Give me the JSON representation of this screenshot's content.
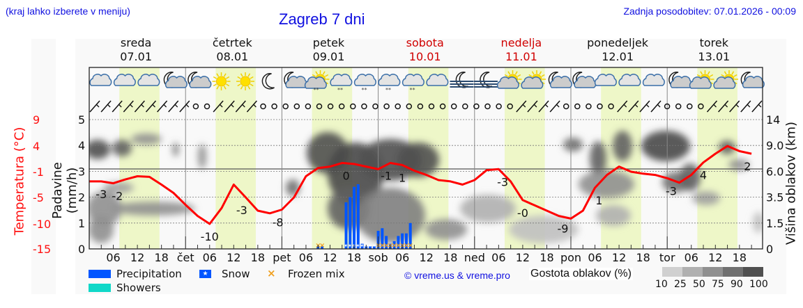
{
  "header": {
    "menu_hint": "(kraj lahko izberete v meniju)",
    "title": "Zagreb 7 dni",
    "last_update": "Zadnja posodobitev: 07.01.2026 - 00:09"
  },
  "days": [
    {
      "name": "sreda",
      "date": "07.01",
      "weekend": false
    },
    {
      "name": "četrtek",
      "date": "08.01",
      "weekend": false
    },
    {
      "name": "petek",
      "date": "09.01",
      "weekend": false
    },
    {
      "name": "sobota",
      "date": "10.01",
      "weekend": true
    },
    {
      "name": "nedelja",
      "date": "11.01",
      "weekend": true
    },
    {
      "name": "ponedeljek",
      "date": "12.01",
      "weekend": false
    },
    {
      "name": "torek",
      "date": "13.01",
      "weekend": false
    }
  ],
  "x_axis": {
    "labels": [
      "06",
      "12",
      "18",
      "čet",
      "06",
      "12",
      "18",
      "pet",
      "06",
      "12",
      "18",
      "sob",
      "06",
      "12",
      "18",
      "ned",
      "06",
      "12",
      "18",
      "pon",
      "06",
      "12",
      "18",
      "tor",
      "06",
      "12",
      "18"
    ]
  },
  "axes": {
    "temp_label": "Temperatura (°C)",
    "temp_ticks": [
      "9",
      "4",
      "-1",
      "-5",
      "-10",
      "-15"
    ],
    "precip_label": "Padavine (mm/h)",
    "precip_ticks": [
      "5",
      "4",
      "3",
      "2",
      "1",
      "0"
    ],
    "cloud_label": "Višina oblakov (km)",
    "cloud_ticks": [
      "14",
      "9.0",
      "6.0",
      "3.5",
      "1.5",
      "0"
    ]
  },
  "legend": {
    "precipitation": "Precipitation",
    "showers": "Showers",
    "snow": "Snow",
    "frozen_mix": "Frozen mix",
    "copyright": "© vreme.us & vreme.pro",
    "cloud_density_label": "Gostota oblakov (%)",
    "cloud_density_scale": [
      "10",
      "25",
      "50",
      "75",
      "90",
      "100"
    ],
    "colors": {
      "precipitation": "#0055ff",
      "showers": "#10d8c8",
      "snow": "#0055ff",
      "frozen_mix": "#f0a020",
      "temperature": "#ff0000",
      "daylight": "#eef7c8",
      "scale": [
        "#d0d0d0",
        "#b0b0b0",
        "#909090",
        "#707070",
        "#505050"
      ]
    }
  },
  "weather_icons": [
    "cloudy",
    "cloudy",
    "cloudy",
    "night-partly-cloudy",
    "night-partly-cloudy",
    "sunny",
    "sunny",
    "clear-night",
    "night-partly-cloudy",
    "partly-sunny-snow",
    "cloudy-snow",
    "cloudy-snow",
    "cloudy-snow",
    "cloudy-snow",
    "cloudy",
    "night-fog",
    "night-fog",
    "partly-sunny",
    "partly-sunny",
    "night-partly-cloudy",
    "night-partly-cloudy",
    "cloudy",
    "cloudy",
    "cloudy",
    "night-partly-cloudy",
    "partly-sunny",
    "partly-sunny",
    "night-partly-cloudy"
  ],
  "chart_data": {
    "type": "line",
    "title": "Zagreb 7 dni",
    "xlabel": "",
    "ylabel": "Temperatura (°C) / Padavine (mm/h)",
    "y2label": "Višina oblakov (km)",
    "temperature_series": {
      "name": "Temperatura (°C)",
      "hours": [
        0,
        3,
        6,
        9,
        12,
        15,
        18,
        21,
        24,
        27,
        30,
        33,
        36,
        39,
        42,
        45,
        48,
        51,
        54,
        57,
        60,
        63,
        66,
        69,
        72,
        75,
        78,
        81,
        84,
        87,
        90,
        93,
        96,
        99,
        102,
        105,
        108,
        111,
        114,
        117,
        120,
        123,
        126,
        129,
        132,
        135,
        138,
        141,
        144,
        147,
        150,
        153,
        156,
        159,
        162,
        165
      ],
      "values": [
        -2.5,
        -2.5,
        -2.8,
        -2.2,
        -1.7,
        -1.8,
        -3.0,
        -4.3,
        -6.4,
        -8.5,
        -10.0,
        -7.0,
        -3.0,
        -5.0,
        -7.5,
        -8.0,
        -7.3,
        -5.0,
        -1.7,
        -0.3,
        0.0,
        0.7,
        0.5,
        0.0,
        -0.5,
        0.7,
        0.3,
        -0.8,
        -1.5,
        -2.3,
        -2.5,
        -3.0,
        -2.3,
        -0.7,
        -0.5,
        -2.5,
        -5.5,
        -6.5,
        -7.5,
        -8.5,
        -9.0,
        -7.5,
        -3.5,
        -1.5,
        0.0,
        -1.0,
        -1.3,
        -1.5,
        -2.0,
        -2.7,
        -1.5,
        0.8,
        2.5,
        4.0,
        3.0,
        2.5
      ]
    },
    "temperature_labels": [
      {
        "hour": 3,
        "text": "-3"
      },
      {
        "hour": 7,
        "text": "-2"
      },
      {
        "hour": 30,
        "text": "-10"
      },
      {
        "hour": 38,
        "text": "-3"
      },
      {
        "hour": 47,
        "text": "-8"
      },
      {
        "hour": 64,
        "text": "0"
      },
      {
        "hour": 74,
        "text": "-1"
      },
      {
        "hour": 78,
        "text": "1"
      },
      {
        "hour": 103,
        "text": "-3"
      },
      {
        "hour": 108,
        "text": "-0"
      },
      {
        "hour": 118,
        "text": "-9"
      },
      {
        "hour": 127,
        "text": "1"
      },
      {
        "hour": 145,
        "text": "-3"
      },
      {
        "hour": 153,
        "text": "4"
      },
      {
        "hour": 164,
        "text": "2"
      }
    ],
    "precipitation_series": {
      "name": "Precipitation (mm/h)",
      "hours": [
        57,
        58,
        64,
        65,
        66,
        67,
        68,
        69,
        70,
        71,
        72,
        73,
        74,
        75,
        76,
        77,
        78,
        79,
        80
      ],
      "values": [
        0.1,
        0.1,
        1.8,
        2.0,
        2.4,
        2.5,
        0.2,
        0.1,
        0.1,
        0.1,
        0.7,
        0.8,
        0.5,
        0.2,
        0.3,
        0.5,
        0.6,
        0.6,
        1.0
      ],
      "type": [
        "frozen",
        "frozen",
        "snow",
        "snow",
        "snow",
        "snow",
        "snow",
        "snow",
        "snow",
        "snow",
        "frozen",
        "frozen",
        "frozen",
        "frozen",
        "frozen",
        "frozen",
        "frozen",
        "frozen",
        "frozen"
      ]
    },
    "axis_ranges": {
      "precip_ylim": [
        0,
        5
      ],
      "temp_ticks": [
        9,
        4,
        -1,
        -5,
        -10,
        -15
      ],
      "cloud_height_ticks_km": [
        0,
        1.5,
        3.5,
        6.0,
        9.0,
        14
      ]
    },
    "grid": true,
    "legend_position": "bottom"
  }
}
